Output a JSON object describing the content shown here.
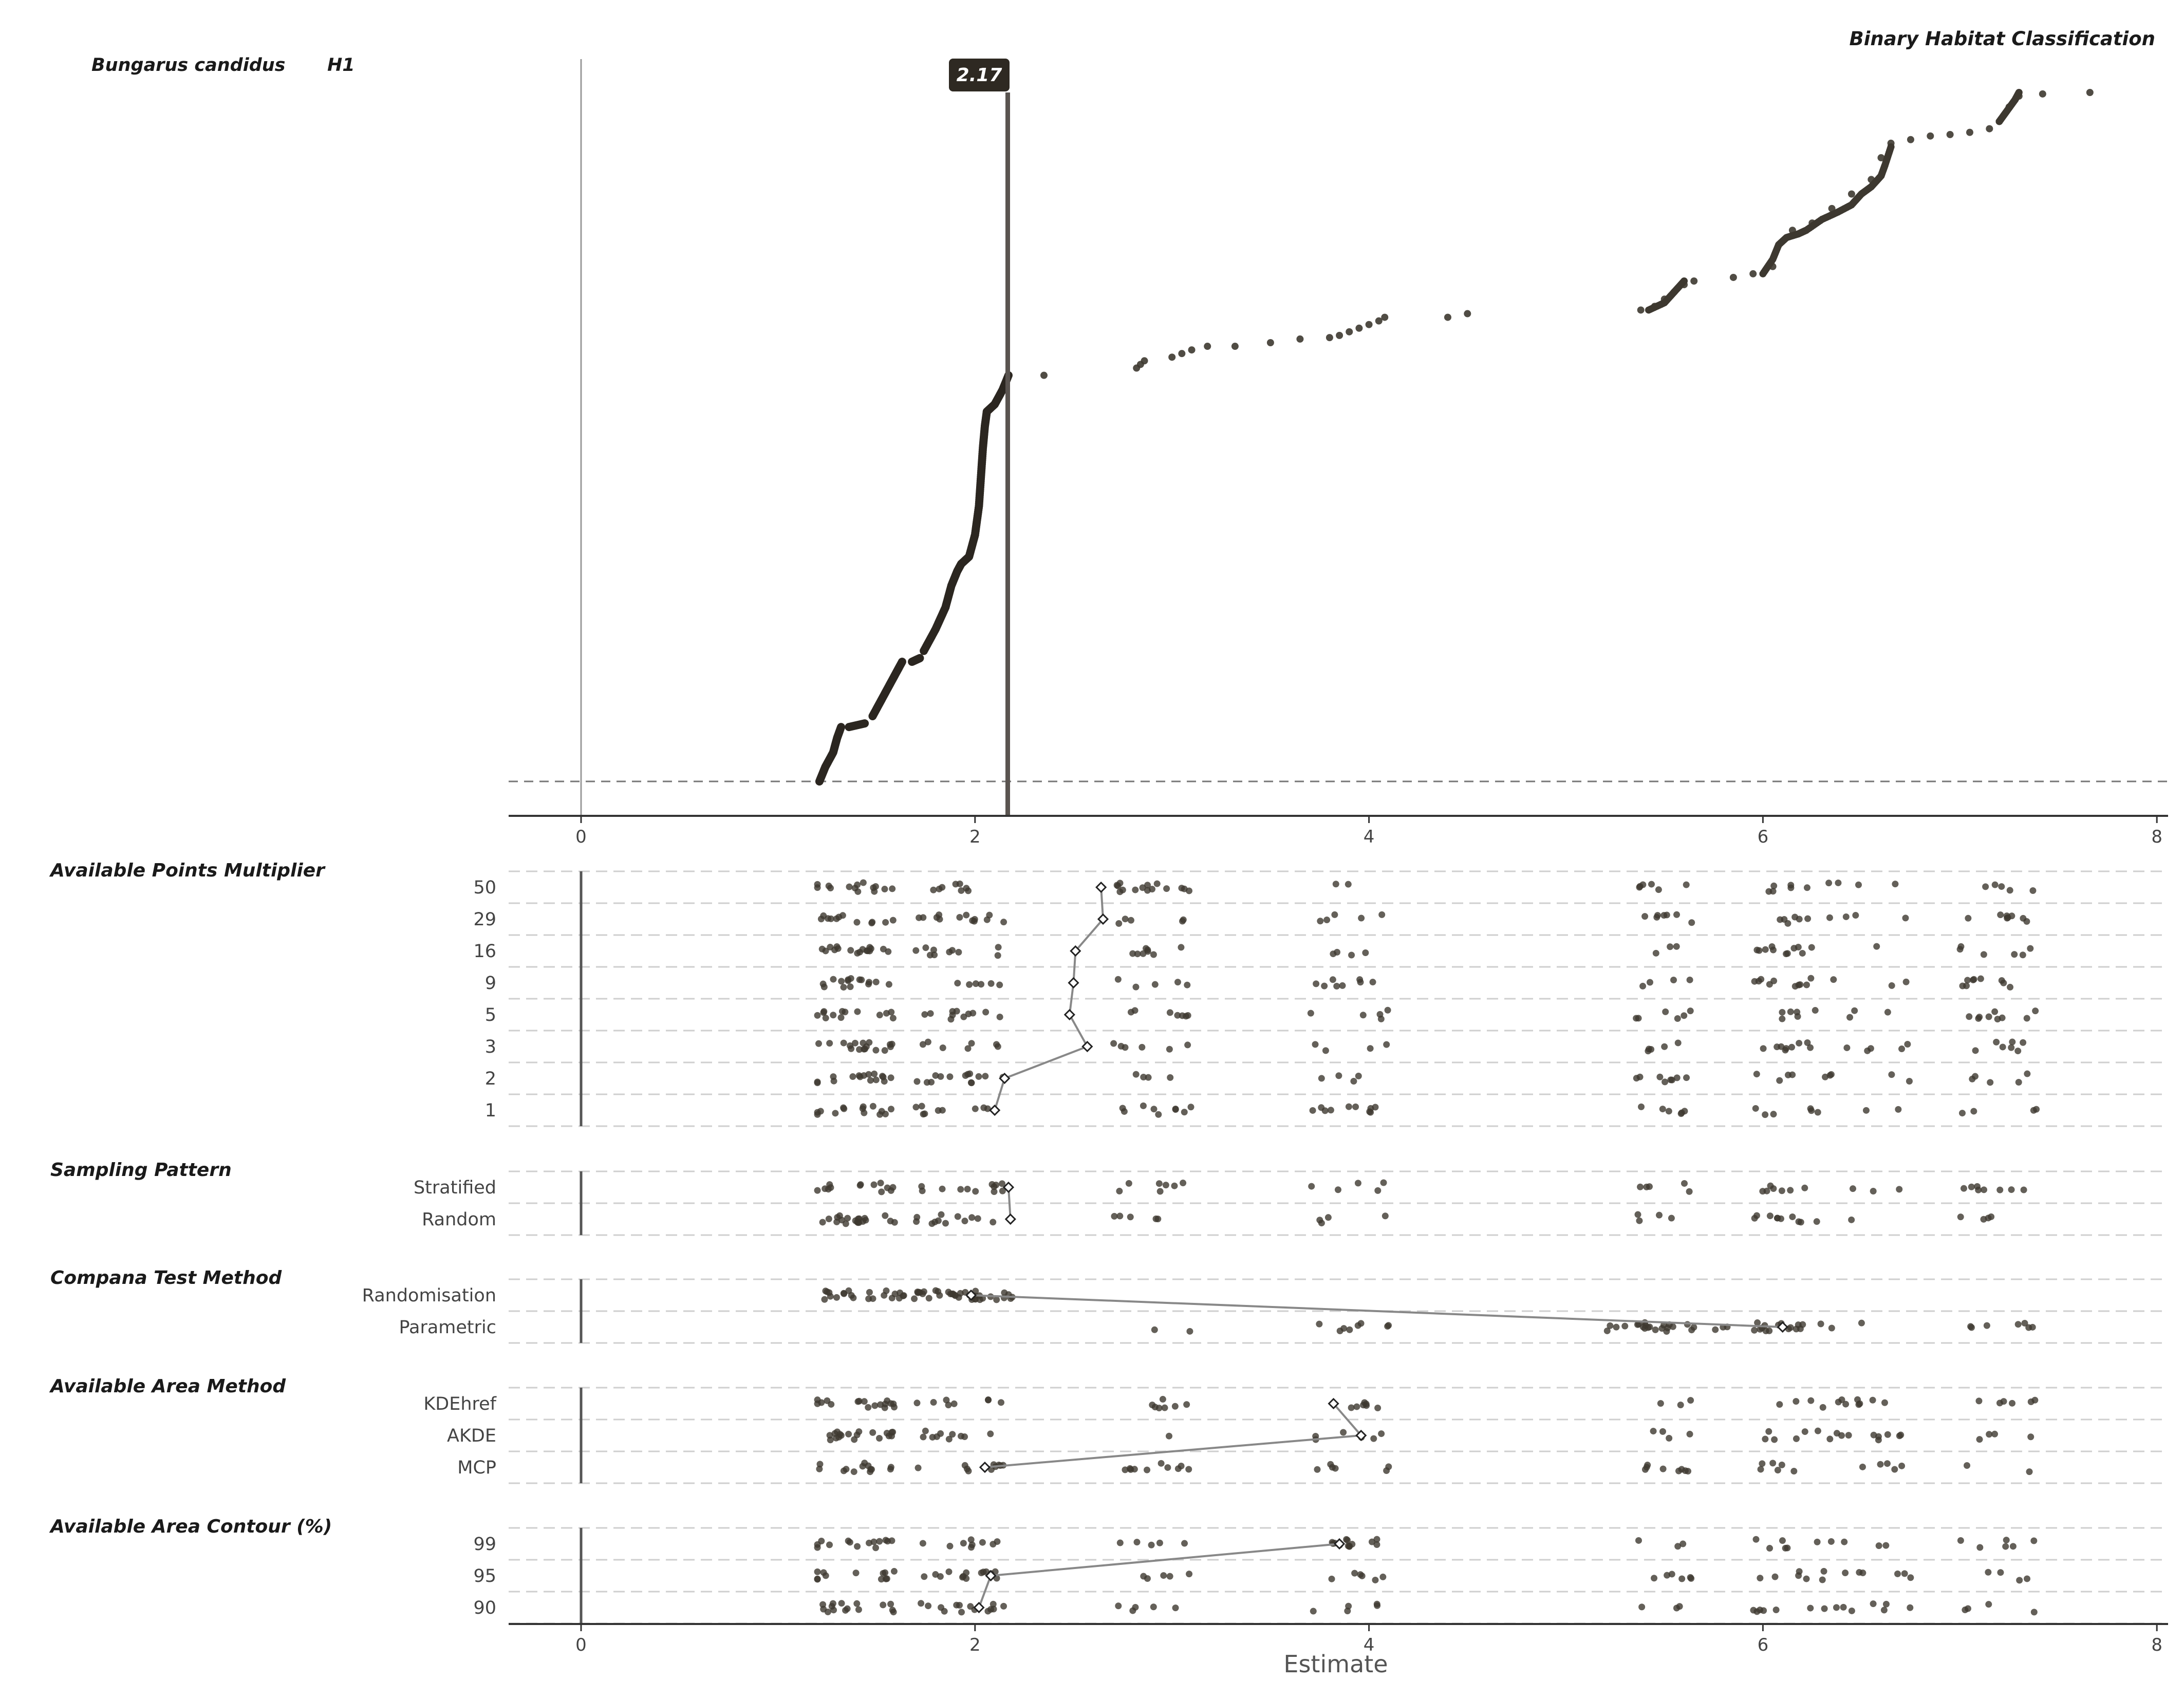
{
  "page": {
    "species": "Bungarus candidus",
    "hypothesis": "H1",
    "plot_title": "Binary Habitat Classification",
    "x_axis_title": "Estimate",
    "median_label": "2.17"
  },
  "colors": {
    "point": "#3d3830",
    "point_dark": "#2b2620",
    "median_line": "#5a5450",
    "label_bg": "#2e2922",
    "axis": "#333333",
    "grid_dash": "#cfcfcf",
    "connector": "#888888"
  },
  "chart_data": [
    {
      "type": "scatter",
      "name": "ranked estimates",
      "title": "Binary Habitat Classification",
      "xlim": [
        0,
        8
      ],
      "xticks": [
        "0",
        "2",
        "4",
        "6",
        "8"
      ],
      "median": 2.17,
      "curve_segments": [
        {
          "x": [
            1.21,
            1.24,
            1.28,
            1.3,
            1.32
          ],
          "y": [
            0.0,
            0.02,
            0.04,
            0.06,
            0.075
          ]
        },
        {
          "x": [
            1.36,
            1.44
          ],
          "y": [
            0.075,
            0.08
          ]
        },
        {
          "x": [
            1.48,
            1.52,
            1.56,
            1.6,
            1.63
          ],
          "y": [
            0.09,
            0.11,
            0.13,
            0.15,
            0.165
          ]
        },
        {
          "x": [
            1.68,
            1.72
          ],
          "y": [
            0.165,
            0.17
          ]
        },
        {
          "x": [
            1.74,
            1.8,
            1.85,
            1.88,
            1.91,
            1.93
          ],
          "y": [
            0.18,
            0.21,
            0.24,
            0.27,
            0.29,
            0.3
          ]
        },
        {
          "x": [
            1.93,
            1.97,
            2.0,
            2.02,
            2.03,
            2.04,
            2.05,
            2.06
          ],
          "y": [
            0.3,
            0.31,
            0.34,
            0.38,
            0.42,
            0.46,
            0.49,
            0.51
          ]
        },
        {
          "x": [
            2.06,
            2.1,
            2.14,
            2.17
          ],
          "y": [
            0.51,
            0.52,
            0.54,
            0.56
          ]
        }
      ],
      "points": [
        {
          "x": 2.35,
          "y": 0.56
        },
        {
          "x": 2.82,
          "y": 0.57
        },
        {
          "x": 2.84,
          "y": 0.575
        },
        {
          "x": 2.86,
          "y": 0.58
        },
        {
          "x": 3.0,
          "y": 0.585
        },
        {
          "x": 3.05,
          "y": 0.59
        },
        {
          "x": 3.1,
          "y": 0.595
        },
        {
          "x": 3.18,
          "y": 0.6
        },
        {
          "x": 3.32,
          "y": 0.6
        },
        {
          "x": 3.5,
          "y": 0.605
        },
        {
          "x": 3.65,
          "y": 0.61
        },
        {
          "x": 3.8,
          "y": 0.612
        },
        {
          "x": 3.85,
          "y": 0.615
        },
        {
          "x": 3.9,
          "y": 0.62
        },
        {
          "x": 3.95,
          "y": 0.625
        },
        {
          "x": 4.0,
          "y": 0.63
        },
        {
          "x": 4.05,
          "y": 0.635
        },
        {
          "x": 4.08,
          "y": 0.64
        },
        {
          "x": 4.4,
          "y": 0.64
        },
        {
          "x": 4.5,
          "y": 0.645
        },
        {
          "x": 5.38,
          "y": 0.65
        },
        {
          "x": 5.45,
          "y": 0.655
        },
        {
          "x": 5.5,
          "y": 0.665
        },
        {
          "x": 5.55,
          "y": 0.675
        },
        {
          "x": 5.6,
          "y": 0.685
        },
        {
          "x": 5.65,
          "y": 0.69
        },
        {
          "x": 5.85,
          "y": 0.695
        },
        {
          "x": 5.95,
          "y": 0.7
        },
        {
          "x": 6.05,
          "y": 0.71
        },
        {
          "x": 6.15,
          "y": 0.76
        },
        {
          "x": 6.25,
          "y": 0.77
        },
        {
          "x": 6.35,
          "y": 0.79
        },
        {
          "x": 6.45,
          "y": 0.81
        },
        {
          "x": 6.55,
          "y": 0.83
        },
        {
          "x": 6.6,
          "y": 0.86
        },
        {
          "x": 6.65,
          "y": 0.88
        },
        {
          "x": 6.75,
          "y": 0.885
        },
        {
          "x": 6.85,
          "y": 0.89
        },
        {
          "x": 6.95,
          "y": 0.892
        },
        {
          "x": 7.05,
          "y": 0.895
        },
        {
          "x": 7.15,
          "y": 0.9
        },
        {
          "x": 7.2,
          "y": 0.91
        },
        {
          "x": 7.25,
          "y": 0.93
        },
        {
          "x": 7.3,
          "y": 0.945
        },
        {
          "x": 7.42,
          "y": 0.948
        },
        {
          "x": 7.66,
          "y": 0.95
        }
      ],
      "dense_segments": [
        {
          "x": [
            5.42,
            5.5,
            5.55,
            5.6
          ],
          "y": [
            0.65,
            0.66,
            0.675,
            0.69
          ]
        },
        {
          "x": [
            6.0,
            6.05,
            6.08,
            6.12,
            6.18,
            6.22
          ],
          "y": [
            0.7,
            0.72,
            0.74,
            0.75,
            0.755,
            0.76
          ]
        },
        {
          "x": [
            6.22,
            6.3,
            6.38,
            6.45,
            6.5,
            6.55,
            6.6,
            6.62,
            6.65
          ],
          "y": [
            0.76,
            0.775,
            0.785,
            0.795,
            0.81,
            0.82,
            0.835,
            0.85,
            0.875
          ]
        },
        {
          "x": [
            7.2,
            7.24,
            7.28,
            7.3
          ],
          "y": [
            0.91,
            0.925,
            0.94,
            0.95
          ]
        }
      ]
    },
    {
      "type": "scatter",
      "title": "Available Points Multiplier",
      "categories": [
        "50",
        "29",
        "16",
        "9",
        "5",
        "3",
        "2",
        "1"
      ],
      "medians": [
        2.64,
        2.65,
        2.51,
        2.5,
        2.48,
        2.57,
        2.15,
        2.1
      ]
    },
    {
      "type": "scatter",
      "title": "Sampling Pattern",
      "categories": [
        "Stratified",
        "Random"
      ],
      "medians": [
        2.17,
        2.18
      ]
    },
    {
      "type": "scatter",
      "title": "Compana Test Method",
      "categories": [
        "Randomisation",
        "Parametric"
      ],
      "medians": [
        1.98,
        6.1
      ]
    },
    {
      "type": "scatter",
      "title": "Available Area Method",
      "categories": [
        "KDEhref",
        "AKDE",
        "MCP"
      ],
      "medians": [
        3.82,
        3.96,
        2.05
      ]
    },
    {
      "type": "scatter",
      "title": "Available Area Contour (%)",
      "categories": [
        "99",
        "95",
        "90"
      ],
      "medians": [
        3.85,
        2.08,
        2.02
      ]
    }
  ]
}
